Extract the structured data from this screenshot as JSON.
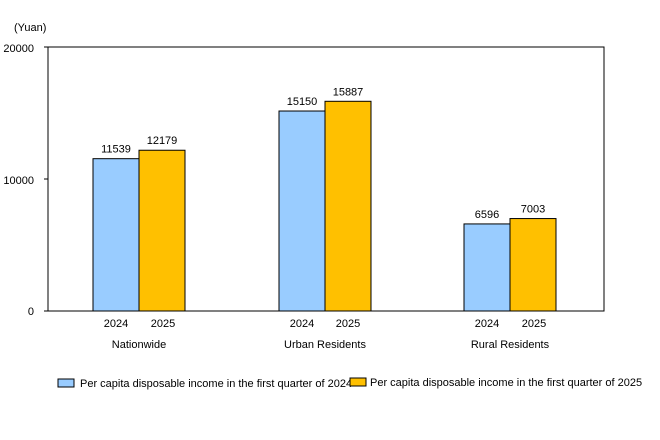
{
  "chart_data": {
    "type": "bar",
    "unit_label": "(Yuan)",
    "y_ticks": [
      "20000",
      "10000",
      "0"
    ],
    "y_tick_values": [
      20000,
      10000,
      0
    ],
    "ylim": [
      0,
      20000
    ],
    "grid": false,
    "legend_position": "bottom",
    "groups": [
      {
        "label": "Nationwide",
        "years": [
          "2024",
          "2025"
        ],
        "value_labels": [
          "11539",
          "12179"
        ]
      },
      {
        "label": "Urban Residents",
        "years": [
          "2024",
          "2025"
        ],
        "value_labels": [
          "15150",
          "15887"
        ]
      },
      {
        "label": "Rural Residents",
        "years": [
          "2024",
          "2025"
        ],
        "value_labels": [
          "6596",
          "7003"
        ]
      }
    ],
    "categories": [
      "Nationwide",
      "Urban Residents",
      "Rural Residents"
    ],
    "series": [
      {
        "name": "Per capita disposable income in the first quarter of 2024",
        "color": "#99ccff",
        "values": [
          11539,
          15150,
          6596
        ]
      },
      {
        "name": "Per capita disposable income in the first quarter of 2025",
        "color": "#ffc000",
        "values": [
          12179,
          15887,
          7003
        ]
      }
    ]
  }
}
